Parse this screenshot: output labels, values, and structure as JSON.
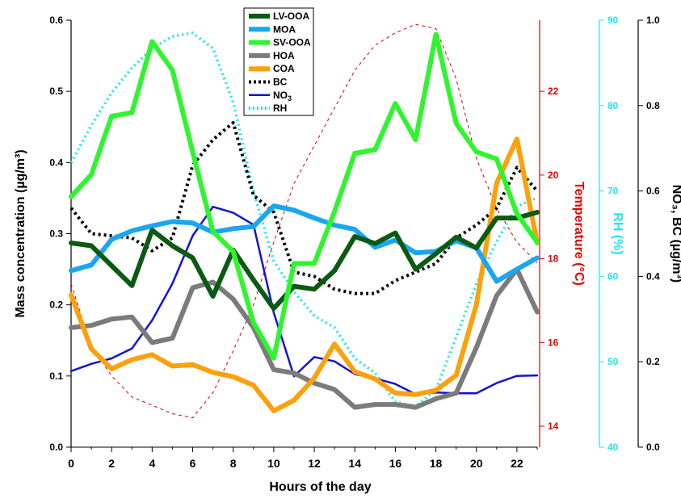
{
  "chart_data": {
    "type": "line",
    "xlabel": "Hours of the day",
    "x": [
      0,
      1,
      2,
      3,
      4,
      5,
      6,
      7,
      8,
      9,
      10,
      11,
      12,
      13,
      14,
      15,
      16,
      17,
      18,
      19,
      20,
      21,
      22,
      23
    ],
    "x_ticks": [
      "0",
      "2",
      "4",
      "6",
      "8",
      "10",
      "12",
      "14",
      "16",
      "18",
      "20",
      "22"
    ],
    "xlim": [
      0,
      23
    ],
    "axes": {
      "left": {
        "label": "Mass concentration (µg/m³)",
        "ylim": [
          0,
          0.6
        ],
        "ticks": [
          "0.0",
          "0.1",
          "0.2",
          "0.3",
          "0.4",
          "0.5",
          "0.6"
        ],
        "color": "#000000"
      },
      "temperature": {
        "label": "Temperature (°C)",
        "ylim": [
          13.5,
          23.7
        ],
        "ticks": [
          "14",
          "16",
          "18",
          "20",
          "22"
        ],
        "color": "#e00000"
      },
      "rh": {
        "label": "RH (%)",
        "ylim": [
          40,
          90
        ],
        "ticks": [
          "40",
          "50",
          "60",
          "70",
          "80",
          "90"
        ],
        "color": "#22e5ee"
      },
      "right": {
        "label": "NO₃, BC (µg/m³)",
        "ylim": [
          0,
          1.0
        ],
        "ticks": [
          "0.0",
          "0.2",
          "0.4",
          "0.6",
          "0.8",
          "1.0"
        ],
        "color": "#000000"
      }
    },
    "series": [
      {
        "name": "LV-OOA",
        "axis": "left",
        "color": "#0b5a12",
        "width": 6,
        "dash": "",
        "values": [
          0.287,
          0.283,
          0.255,
          0.227,
          0.305,
          0.283,
          0.266,
          0.212,
          0.277,
          0.235,
          0.195,
          0.226,
          0.222,
          0.248,
          0.296,
          0.286,
          0.301,
          0.25,
          0.272,
          0.295,
          0.28,
          0.322,
          0.322,
          0.33
        ]
      },
      {
        "name": "MOA",
        "axis": "left",
        "color": "#1aa6f0",
        "width": 6,
        "dash": "",
        "values": [
          0.248,
          0.256,
          0.292,
          0.304,
          0.311,
          0.317,
          0.315,
          0.302,
          0.307,
          0.31,
          0.339,
          0.333,
          0.322,
          0.312,
          0.306,
          0.281,
          0.291,
          0.273,
          0.275,
          0.29,
          0.28,
          0.233,
          0.25,
          0.266
        ]
      },
      {
        "name": "SV-OOA",
        "axis": "left",
        "color": "#2ff52f",
        "width": 6,
        "dash": "",
        "values": [
          0.352,
          0.383,
          0.465,
          0.47,
          0.57,
          0.53,
          0.415,
          0.303,
          0.275,
          0.175,
          0.125,
          0.258,
          0.258,
          0.331,
          0.413,
          0.418,
          0.483,
          0.432,
          0.58,
          0.455,
          0.415,
          0.405,
          0.328,
          0.288
        ]
      },
      {
        "name": "HOA",
        "axis": "left",
        "color": "#7b7b7b",
        "width": 6,
        "dash": "",
        "values": [
          0.168,
          0.171,
          0.18,
          0.183,
          0.147,
          0.153,
          0.224,
          0.232,
          0.208,
          0.168,
          0.109,
          0.104,
          0.09,
          0.081,
          0.056,
          0.06,
          0.06,
          0.056,
          0.068,
          0.076,
          0.14,
          0.213,
          0.25,
          0.19
        ]
      },
      {
        "name": "COA",
        "axis": "left",
        "color": "#fca10c",
        "width": 6,
        "dash": "",
        "values": [
          0.214,
          0.138,
          0.11,
          0.123,
          0.13,
          0.114,
          0.116,
          0.105,
          0.099,
          0.087,
          0.051,
          0.066,
          0.097,
          0.145,
          0.106,
          0.096,
          0.076,
          0.074,
          0.08,
          0.101,
          0.2,
          0.371,
          0.433,
          0.287
        ]
      },
      {
        "name": "BC",
        "axis": "right",
        "color": "#000000",
        "width": 4,
        "dash": "3,4",
        "values": [
          0.56,
          0.5,
          0.495,
          0.49,
          0.46,
          0.49,
          0.66,
          0.72,
          0.76,
          0.59,
          0.55,
          0.41,
          0.4,
          0.37,
          0.36,
          0.36,
          0.39,
          0.41,
          0.43,
          0.49,
          0.52,
          0.56,
          0.655,
          0.6
        ]
      },
      {
        "name": "NO3",
        "axis": "right",
        "color": "#1414d2",
        "width": 2.5,
        "dash": "",
        "values": [
          0.178,
          0.195,
          0.208,
          0.231,
          0.297,
          0.383,
          0.495,
          0.563,
          0.549,
          0.521,
          0.315,
          0.166,
          0.211,
          0.201,
          0.171,
          0.161,
          0.148,
          0.124,
          0.128,
          0.126,
          0.126,
          0.15,
          0.167,
          0.168
        ]
      },
      {
        "name": "RH",
        "axis": "rh",
        "color": "#22e5ee",
        "width": 3.5,
        "dash": "2,4",
        "values": [
          73.3,
          77.7,
          81.5,
          84.4,
          86.7,
          88.1,
          88.5,
          86.7,
          80.4,
          70.0,
          61.8,
          58.2,
          55.4,
          54.0,
          50.4,
          48.7,
          45.3,
          44.8,
          46.7,
          52.9,
          59.1,
          64.1,
          68.2,
          69.2
        ]
      },
      {
        "name": "Temperature",
        "axis": "temperature",
        "color": "#e00000",
        "width": 1,
        "dash": "4,4",
        "values": [
          17.4,
          15.9,
          15.2,
          14.7,
          14.5,
          14.3,
          14.2,
          14.8,
          15.8,
          16.9,
          18.4,
          19.8,
          20.7,
          21.6,
          22.5,
          23.1,
          23.4,
          23.6,
          23.5,
          22.3,
          20.4,
          19.2,
          18.4,
          17.9
        ]
      }
    ],
    "legend": {
      "placement": "top-center",
      "entries": [
        {
          "key": "lv-ooa",
          "label": "LV-OOA",
          "sub": "",
          "color": "#0b5a12",
          "dash": "",
          "width": 6
        },
        {
          "key": "moa",
          "label": "MOA",
          "sub": "",
          "color": "#1aa6f0",
          "dash": "",
          "width": 6
        },
        {
          "key": "sv-ooa",
          "label": "SV-OOA",
          "sub": "",
          "color": "#2ff52f",
          "dash": "",
          "width": 6
        },
        {
          "key": "hoa",
          "label": "HOA",
          "sub": "",
          "color": "#7b7b7b",
          "dash": "",
          "width": 6
        },
        {
          "key": "coa",
          "label": "COA",
          "sub": "",
          "color": "#fca10c",
          "dash": "",
          "width": 6
        },
        {
          "key": "bc",
          "label": "BC",
          "sub": "",
          "color": "#000000",
          "dash": "3,3",
          "width": 4
        },
        {
          "key": "no3",
          "label": "NO",
          "sub": "3",
          "color": "#1414d2",
          "dash": "",
          "width": 2.5
        },
        {
          "key": "rh",
          "label": "RH",
          "sub": "",
          "color": "#22e5ee",
          "dash": "2,3",
          "width": 4
        }
      ]
    },
    "grid": false
  }
}
